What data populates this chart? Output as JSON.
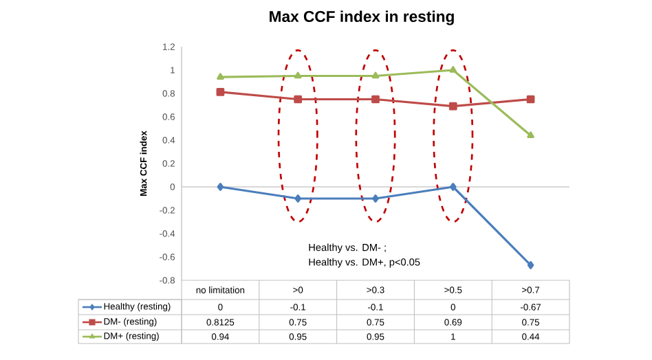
{
  "chart_data": {
    "type": "line",
    "title": "Max CCF index in resting",
    "ylabel": "Max CCF index",
    "categories": [
      "no limitation",
      ">0",
      ">0.3",
      ">0.5",
      ">0.7"
    ],
    "series": [
      {
        "name": "Healthy (resting)",
        "color": "#4a7ebb",
        "marker": "diamond",
        "values": [
          0,
          -0.1,
          -0.1,
          0,
          -0.67
        ]
      },
      {
        "name": "DM- (resting)",
        "color": "#be4b48",
        "marker": "square",
        "values": [
          0.8125,
          0.75,
          0.75,
          0.69,
          0.75
        ]
      },
      {
        "name": "DM+ (resting)",
        "color": "#9bbb59",
        "marker": "triangle",
        "values": [
          0.94,
          0.95,
          0.95,
          1,
          0.44
        ]
      }
    ],
    "ylim": [
      -0.8,
      1.2
    ],
    "yticks": [
      -0.8,
      -0.6,
      -0.4,
      -0.2,
      0,
      0.2,
      0.4,
      0.6,
      0.8,
      1,
      1.2
    ],
    "legend": "bottom left",
    "data_labels": true,
    "line_style": "solid",
    "annotations": [
      "Healthy vs. DM- ;",
      "Healthy vs. DM+, p<0.05"
    ]
  }
}
